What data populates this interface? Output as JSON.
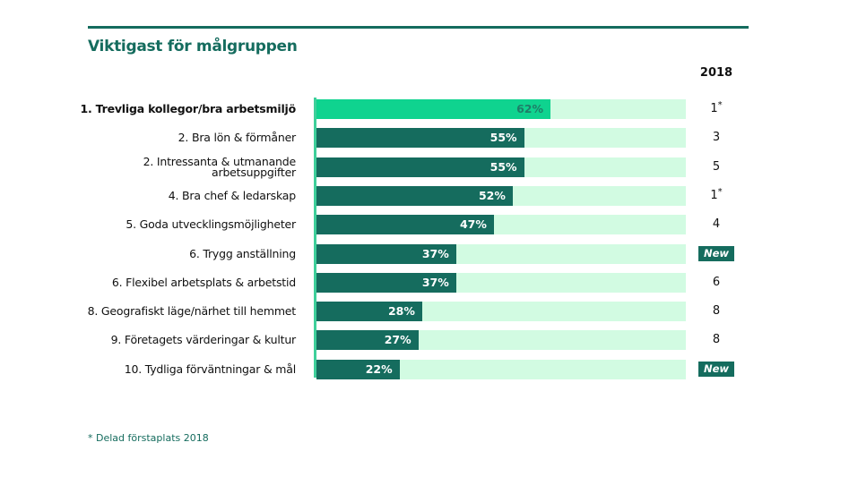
{
  "chart_data": {
    "type": "bar",
    "orientation": "horizontal",
    "title": "Viktigast för målgruppen",
    "xlabel": "",
    "ylabel": "",
    "xlim": [
      0,
      100
    ],
    "categories": [
      "1. Trevliga kollegor/bra arbetsmiljö",
      "2. Bra lön & förmåner",
      "2. Intressanta & utmanande arbetsuppgifter",
      "4. Bra chef & ledarskap",
      "5. Goda utvecklingsmöjligheter",
      "6. Trygg anställning",
      "6. Flexibel arbetsplats & arbetstid",
      "8. Geografiskt läge/närhet till hemmet",
      "9. Företagets värderingar & kultur",
      "10. Tydliga förväntningar & mål"
    ],
    "label_lines": [
      [
        "1. Trevliga kollegor/bra arbetsmiljö"
      ],
      [
        "2. Bra lön & förmåner"
      ],
      [
        "2. Intressanta & utmanande",
        "arbetsuppgifter"
      ],
      [
        "4. Bra chef & ledarskap"
      ],
      [
        "5. Goda utvecklingsmöjligheter"
      ],
      [
        "6. Trygg anställning"
      ],
      [
        "6. Flexibel arbetsplats & arbetstid"
      ],
      [
        "8. Geografiskt läge/närhet till hemmet"
      ],
      [
        "9. Företagets värderingar & kultur"
      ],
      [
        "10. Tydliga förväntningar & mål"
      ]
    ],
    "values": [
      62,
      55,
      55,
      52,
      47,
      37,
      37,
      28,
      27,
      22
    ],
    "value_labels": [
      "62%",
      "55%",
      "55%",
      "52%",
      "47%",
      "37%",
      "37%",
      "28%",
      "27%",
      "22%"
    ],
    "column_header": "2018",
    "rank_2018": [
      {
        "text": "1",
        "mark": "*"
      },
      {
        "text": "3",
        "mark": ""
      },
      {
        "text": "5",
        "mark": ""
      },
      {
        "text": "1",
        "mark": "*"
      },
      {
        "text": "4",
        "mark": ""
      },
      {
        "badge": "New"
      },
      {
        "text": "6",
        "mark": ""
      },
      {
        "text": "8",
        "mark": ""
      },
      {
        "text": "8",
        "mark": ""
      },
      {
        "badge": "New"
      }
    ],
    "footnote_mark": "*",
    "footnote": "Delad förstaplats 2018",
    "colors": {
      "highlight_bar": "#0fd38f",
      "bar": "#156c5e",
      "track": "#d2fbe2",
      "title": "#156c5e"
    }
  }
}
